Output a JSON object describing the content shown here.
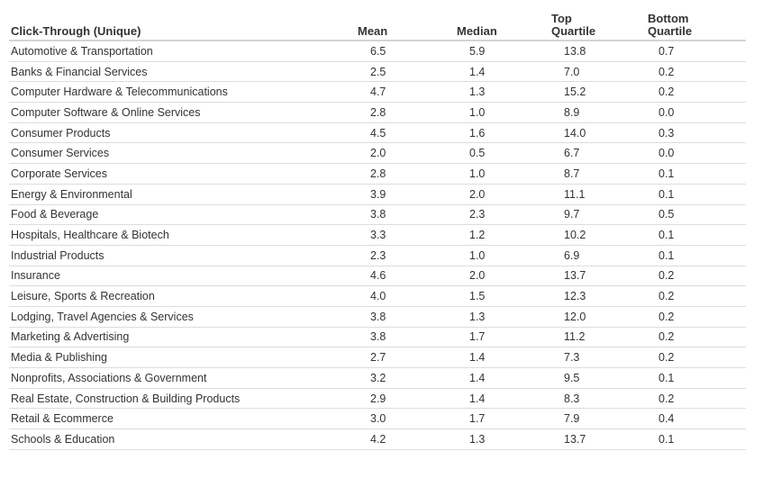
{
  "chart_data": {
    "type": "table",
    "columns": [
      "Click-Through (Unique)",
      "Mean",
      "Median",
      "Top\nQuartile",
      "Bottom\nQuartile"
    ],
    "rows": [
      [
        "Automotive & Transportation",
        "6.5",
        "5.9",
        "13.8",
        "0.7"
      ],
      [
        "Banks & Financial Services",
        "2.5",
        "1.4",
        "7.0",
        "0.2"
      ],
      [
        "Computer Hardware & Telecommunications",
        "4.7",
        "1.3",
        "15.2",
        "0.2"
      ],
      [
        "Computer Software & Online Services",
        "2.8",
        "1.0",
        "8.9",
        "0.0"
      ],
      [
        "Consumer Products",
        "4.5",
        "1.6",
        "14.0",
        "0.3"
      ],
      [
        "Consumer Services",
        "2.0",
        "0.5",
        "6.7",
        "0.0"
      ],
      [
        "Corporate Services",
        "2.8",
        "1.0",
        "8.7",
        "0.1"
      ],
      [
        "Energy & Environmental",
        "3.9",
        "2.0",
        "11.1",
        "0.1"
      ],
      [
        "Food & Beverage",
        "3.8",
        "2.3",
        "9.7",
        "0.5"
      ],
      [
        "Hospitals, Healthcare & Biotech",
        "3.3",
        "1.2",
        "10.2",
        "0.1"
      ],
      [
        "Industrial Products",
        "2.3",
        "1.0",
        "6.9",
        "0.1"
      ],
      [
        "Insurance",
        "4.6",
        "2.0",
        "13.7",
        "0.2"
      ],
      [
        "Leisure, Sports & Recreation",
        "4.0",
        "1.5",
        "12.3",
        "0.2"
      ],
      [
        "Lodging, Travel Agencies & Services",
        "3.8",
        "1.3",
        "12.0",
        "0.2"
      ],
      [
        "Marketing & Advertising",
        "3.8",
        "1.7",
        "11.2",
        "0.2"
      ],
      [
        "Media & Publishing",
        "2.7",
        "1.4",
        "7.3",
        "0.2"
      ],
      [
        "Nonprofits, Associations & Government",
        "3.2",
        "1.4",
        "9.5",
        "0.1"
      ],
      [
        "Real Estate, Construction & Building Products",
        "2.9",
        "1.4",
        "8.3",
        "0.2"
      ],
      [
        "Retail & Ecommerce",
        "3.0",
        "1.7",
        "7.9",
        "0.4"
      ],
      [
        "Schools & Education",
        "4.2",
        "1.3",
        "13.7",
        "0.1"
      ]
    ]
  }
}
